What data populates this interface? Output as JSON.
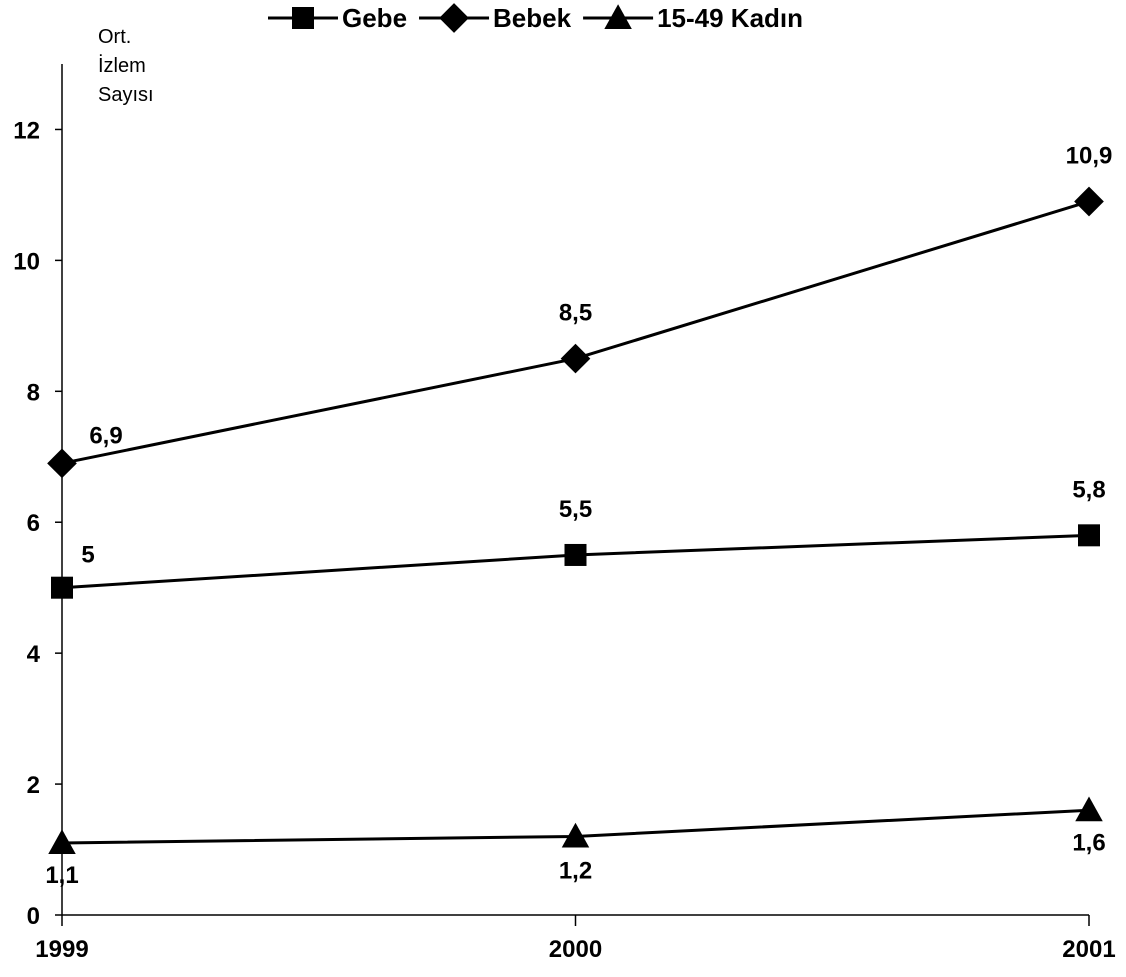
{
  "chart_data": {
    "type": "line",
    "title": "",
    "xlabel": "",
    "ylabel_lines": [
      "Ort.",
      "İzlem",
      "Sayısı"
    ],
    "x": [
      "1999",
      "2000",
      "2001"
    ],
    "ylim": [
      0,
      13
    ],
    "yticks": [
      0,
      2,
      4,
      6,
      8,
      10,
      12
    ],
    "grid": false,
    "legend_position": "top",
    "series": [
      {
        "name": "Gebe",
        "marker": "square",
        "values": [
          5,
          5.5,
          5.8
        ],
        "labels": [
          "5",
          "5,5",
          "5,8"
        ],
        "color": "#000000"
      },
      {
        "name": "Bebek",
        "marker": "diamond",
        "values": [
          6.9,
          8.5,
          10.9
        ],
        "labels": [
          "6,9",
          "8,5",
          "10,9"
        ],
        "color": "#000000"
      },
      {
        "name": "15-49 Kadın",
        "marker": "triangle",
        "values": [
          1.1,
          1.2,
          1.6
        ],
        "labels": [
          "1,1",
          "1,2",
          "1,6"
        ],
        "color": "#000000"
      }
    ]
  }
}
